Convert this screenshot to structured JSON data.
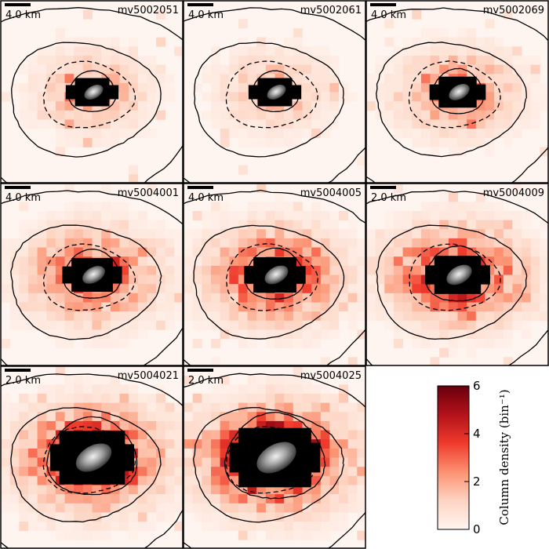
{
  "figure": {
    "background": "#ffffff"
  },
  "colormap": {
    "low": "#fff5f0",
    "mid1": "#fcbba1",
    "mid2": "#fb6a4a",
    "mid3": "#cb181d",
    "high": "#67000d"
  },
  "chart_data": {
    "type": "heatmap",
    "description_kind": "grid of column density maps",
    "panels": [
      {
        "title": "mv5002051",
        "scale_bar": "4.0 km",
        "intensity": 0.35,
        "spread": 1.6,
        "nucleus_size": 1.0,
        "seed": 11
      },
      {
        "title": "mv5002061",
        "scale_bar": "4.0 km",
        "intensity": 0.3,
        "spread": 1.6,
        "nucleus_size": 1.0,
        "seed": 23
      },
      {
        "title": "mv5002069",
        "scale_bar": "4.0 km",
        "intensity": 0.45,
        "spread": 1.7,
        "nucleus_size": 1.1,
        "seed": 37
      },
      {
        "title": "mv5004001",
        "scale_bar": "4.0 km",
        "intensity": 0.55,
        "spread": 1.9,
        "nucleus_size": 1.2,
        "seed": 41
      },
      {
        "title": "mv5004005",
        "scale_bar": "4.0 km",
        "intensity": 0.65,
        "spread": 1.9,
        "nucleus_size": 1.25,
        "seed": 53
      },
      {
        "title": "mv5004009",
        "scale_bar": "2.0 km",
        "intensity": 0.75,
        "spread": 1.9,
        "nucleus_size": 1.35,
        "seed": 67
      },
      {
        "title": "mv5004021",
        "scale_bar": "2.0 km",
        "intensity": 0.85,
        "spread": 2.0,
        "nucleus_size": 1.9,
        "seed": 71
      },
      {
        "title": "mv5004025",
        "scale_bar": "2.0 km",
        "intensity": 1.0,
        "spread": 2.0,
        "nucleus_size": 2.1,
        "seed": 89
      }
    ],
    "colorbar": {
      "label": "Column density (bin⁻¹)",
      "range": [
        0,
        6
      ],
      "ticks": [
        "0",
        "2",
        "4",
        "6"
      ]
    }
  }
}
